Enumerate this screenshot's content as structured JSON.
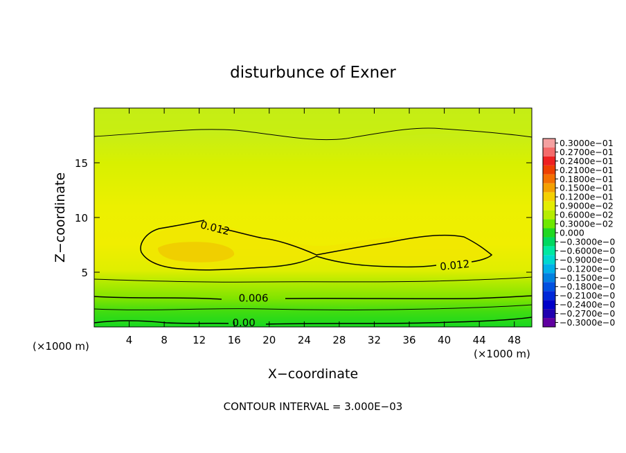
{
  "chart_data": {
    "type": "contour",
    "title": "disturbunce of Exner",
    "xlabel": "X−coordinate",
    "ylabel": "Z−coordinate",
    "x_unit_left": "(×1000 m)",
    "x_unit_right": "(×1000 m)",
    "footer": "CONTOUR INTERVAL = 3.000E−03",
    "xlim": [
      0,
      50
    ],
    "ylim": [
      0,
      20
    ],
    "x_ticks": [
      4,
      8,
      12,
      16,
      20,
      24,
      28,
      32,
      36,
      40,
      44,
      48
    ],
    "x_tick_labels": [
      "4",
      "8",
      "12",
      "16",
      "20",
      "24",
      "28",
      "32",
      "36",
      "40",
      "44",
      "48"
    ],
    "y_ticks": [
      5,
      10,
      15
    ],
    "y_tick_labels": [
      "5",
      "10",
      "15"
    ],
    "contour_interval": 0.003,
    "contour_labels": [
      {
        "text": "0.012",
        "x": 13.8,
        "z": 9.0
      },
      {
        "text": "0.012",
        "x": 41.2,
        "z": 5.6
      },
      {
        "text": "0.006",
        "x": 18.2,
        "z": 2.6
      },
      {
        "text": "0.00",
        "x": 17.1,
        "z": 0.35
      }
    ],
    "colorbar": {
      "levels": [
        "0.3000e−01",
        "0.2700e−01",
        "0.2400e−01",
        "0.2100e−01",
        "0.1800e−01",
        "0.1500e−01",
        "0.1200e−01",
        "0.9000e−02",
        "0.6000e−02",
        "0.3000e−02",
        "0.000",
        "−0.3000e−0",
        "−0.6000e−0",
        "−0.9000e−0",
        "−0.1200e−0",
        "−0.1500e−0",
        "−0.1800e−0",
        "−0.2100e−0",
        "−0.2400e−0",
        "−0.2700e−0",
        "−0.3000e−0"
      ],
      "colors": [
        "#f4a0a0",
        "#f46a6a",
        "#ee2020",
        "#ee4000",
        "#f47000",
        "#f4a000",
        "#f4d000",
        "#e4ec00",
        "#b6ec00",
        "#6ee800",
        "#20d820",
        "#00d860",
        "#00e8a0",
        "#00d8d0",
        "#00b0e8",
        "#0080e0",
        "#0050e0",
        "#0028d8",
        "#0000c8",
        "#2000b0",
        "#6000a0"
      ]
    }
  }
}
